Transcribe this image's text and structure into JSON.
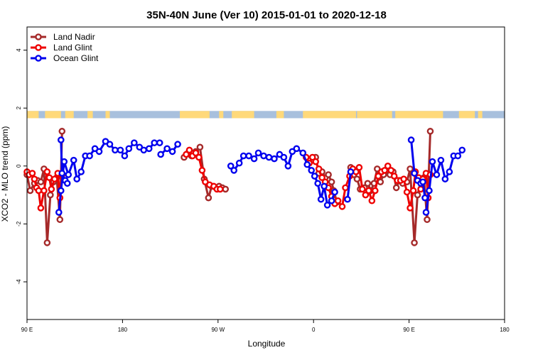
{
  "chart_data": {
    "type": "line",
    "title": "35N-40N June (Ver 10)   2015-01-01 to 2020-12-18",
    "xlabel": "Longitude",
    "ylabel": "XCO2 - MLO trend (ppm)",
    "xlim": [
      90,
      540
    ],
    "ylim": [
      -5.3,
      4.8
    ],
    "xticks": [
      {
        "value": 90,
        "label": "90 E"
      },
      {
        "value": 180,
        "label": "180"
      },
      {
        "value": 270,
        "label": "90 W"
      },
      {
        "value": 360,
        "label": "0"
      },
      {
        "value": 450,
        "label": "90 E"
      },
      {
        "value": 540,
        "label": "180"
      }
    ],
    "yticks": [
      {
        "value": -4,
        "label": "-4"
      },
      {
        "value": -2,
        "label": "-2"
      },
      {
        "value": 0,
        "label": "0"
      },
      {
        "value": 2,
        "label": "2"
      },
      {
        "value": 4,
        "label": "4"
      }
    ],
    "grid": false,
    "legend": "top-left",
    "land_strip": {
      "y_range": [
        1.65,
        1.9
      ],
      "land_color": "#ffd97a",
      "ocean_color": "#a8c0dd",
      "land_segments": [
        [
          90,
          101
        ],
        [
          107,
          122
        ],
        [
          126,
          134
        ],
        [
          147,
          152
        ],
        [
          164,
          168
        ],
        [
          234,
          262
        ],
        [
          271,
          275
        ],
        [
          283,
          304
        ],
        [
          325,
          332
        ],
        [
          350,
          400
        ],
        [
          401,
          434
        ],
        [
          437,
          482
        ],
        [
          497,
          512
        ],
        [
          515,
          519
        ]
      ]
    },
    "series": [
      {
        "name": "Land Nadir",
        "color": "#a52a2a",
        "segments": [
          [
            {
              "x": 90,
              "y": -0.3
            },
            {
              "x": 93,
              "y": -0.85
            },
            {
              "x": 97,
              "y": -0.6
            },
            {
              "x": 100,
              "y": -0.5
            },
            {
              "x": 103,
              "y": -0.55
            },
            {
              "x": 106,
              "y": -0.1
            },
            {
              "x": 109,
              "y": -2.65
            },
            {
              "x": 112,
              "y": -1.0
            },
            {
              "x": 115,
              "y": -0.55
            },
            {
              "x": 118,
              "y": -0.4
            },
            {
              "x": 121,
              "y": -1.85
            },
            {
              "x": 123,
              "y": 1.2
            }
          ],
          [
            {
              "x": 238,
              "y": 0.3
            },
            {
              "x": 242,
              "y": 0.45
            },
            {
              "x": 245,
              "y": 0.35
            },
            {
              "x": 249,
              "y": 0.5
            },
            {
              "x": 253,
              "y": 0.65
            },
            {
              "x": 257,
              "y": -0.45
            },
            {
              "x": 261,
              "y": -1.1
            },
            {
              "x": 264,
              "y": -0.7
            },
            {
              "x": 268,
              "y": -0.75
            },
            {
              "x": 271,
              "y": -0.7
            },
            {
              "x": 274,
              "y": -0.75
            },
            {
              "x": 277,
              "y": -0.8
            }
          ],
          [
            {
              "x": 362,
              "y": 0.3
            },
            {
              "x": 365,
              "y": -0.25
            },
            {
              "x": 368,
              "y": -0.2
            },
            {
              "x": 371,
              "y": -0.4
            },
            {
              "x": 374,
              "y": -0.3
            },
            {
              "x": 377,
              "y": -0.55
            },
            {
              "x": 379,
              "y": -0.85
            },
            {
              "x": 382,
              "y": -1.25
            }
          ],
          [
            {
              "x": 395,
              "y": -0.05
            },
            {
              "x": 398,
              "y": -0.3
            },
            {
              "x": 401,
              "y": -0.45
            },
            {
              "x": 404,
              "y": -0.8
            },
            {
              "x": 408,
              "y": -0.75
            },
            {
              "x": 411,
              "y": -0.6
            },
            {
              "x": 414,
              "y": -0.85
            },
            {
              "x": 417,
              "y": -0.6
            },
            {
              "x": 420,
              "y": -0.1
            },
            {
              "x": 423,
              "y": -0.55
            },
            {
              "x": 426,
              "y": -0.3
            },
            {
              "x": 429,
              "y": -0.15
            },
            {
              "x": 432,
              "y": -0.3
            },
            {
              "x": 435,
              "y": -0.2
            },
            {
              "x": 438,
              "y": -0.75
            },
            {
              "x": 441,
              "y": -0.5
            },
            {
              "x": 444,
              "y": -0.6
            },
            {
              "x": 448,
              "y": -0.55
            },
            {
              "x": 451,
              "y": -0.1
            },
            {
              "x": 455,
              "y": -2.65
            },
            {
              "x": 458,
              "y": -1.0
            },
            {
              "x": 461,
              "y": -0.55
            },
            {
              "x": 464,
              "y": -0.4
            },
            {
              "x": 467,
              "y": -1.85
            },
            {
              "x": 470,
              "y": 1.2
            }
          ]
        ]
      },
      {
        "name": "Land Glint",
        "color": "#ee0000",
        "segments": [
          [
            {
              "x": 90,
              "y": -0.2
            },
            {
              "x": 92,
              "y": -0.3
            },
            {
              "x": 95,
              "y": -0.25
            },
            {
              "x": 97,
              "y": -0.45
            },
            {
              "x": 99,
              "y": -0.75
            },
            {
              "x": 101,
              "y": -0.85
            },
            {
              "x": 103,
              "y": -1.45
            },
            {
              "x": 106,
              "y": -0.85
            },
            {
              "x": 109,
              "y": -0.2
            },
            {
              "x": 111,
              "y": -0.4
            },
            {
              "x": 113,
              "y": -0.8
            },
            {
              "x": 116,
              "y": -0.45
            },
            {
              "x": 119,
              "y": -0.25
            },
            {
              "x": 121,
              "y": -1.1
            },
            {
              "x": 123,
              "y": -0.3
            }
          ],
          [
            {
              "x": 240,
              "y": 0.4
            },
            {
              "x": 243,
              "y": 0.55
            },
            {
              "x": 246,
              "y": 0.35
            },
            {
              "x": 249,
              "y": 0.45
            },
            {
              "x": 252,
              "y": 0.3
            },
            {
              "x": 255,
              "y": -0.15
            },
            {
              "x": 258,
              "y": -0.55
            },
            {
              "x": 262,
              "y": -0.65
            },
            {
              "x": 266,
              "y": -0.7
            },
            {
              "x": 269,
              "y": -0.8
            },
            {
              "x": 272,
              "y": -0.8
            }
          ],
          [
            {
              "x": 353,
              "y": 0.3
            },
            {
              "x": 356,
              "y": 0.1
            },
            {
              "x": 359,
              "y": 0.3
            },
            {
              "x": 362,
              "y": 0.15
            },
            {
              "x": 365,
              "y": -0.1
            },
            {
              "x": 368,
              "y": -0.4
            },
            {
              "x": 371,
              "y": -0.55
            },
            {
              "x": 374,
              "y": -0.75
            },
            {
              "x": 377,
              "y": -1.05
            },
            {
              "x": 380,
              "y": -1.3
            },
            {
              "x": 383,
              "y": -1.2
            },
            {
              "x": 387,
              "y": -1.4
            },
            {
              "x": 390,
              "y": -0.75
            },
            {
              "x": 394,
              "y": -0.35
            },
            {
              "x": 397,
              "y": -0.1
            },
            {
              "x": 400,
              "y": -0.2
            },
            {
              "x": 403,
              "y": -0.05
            },
            {
              "x": 406,
              "y": -0.8
            },
            {
              "x": 409,
              "y": -1.0
            },
            {
              "x": 412,
              "y": -0.85
            },
            {
              "x": 415,
              "y": -1.2
            },
            {
              "x": 418,
              "y": -0.85
            },
            {
              "x": 421,
              "y": -0.35
            },
            {
              "x": 424,
              "y": -0.2
            },
            {
              "x": 427,
              "y": -0.15
            },
            {
              "x": 430,
              "y": 0.0
            },
            {
              "x": 433,
              "y": -0.15
            },
            {
              "x": 436,
              "y": -0.35
            },
            {
              "x": 439,
              "y": -0.5
            },
            {
              "x": 442,
              "y": -0.5
            },
            {
              "x": 445,
              "y": -0.45
            },
            {
              "x": 448,
              "y": -0.9
            },
            {
              "x": 451,
              "y": -1.45
            },
            {
              "x": 454,
              "y": -0.85
            },
            {
              "x": 456,
              "y": -0.2
            },
            {
              "x": 459,
              "y": -0.4
            },
            {
              "x": 461,
              "y": -0.8
            },
            {
              "x": 463,
              "y": -0.45
            },
            {
              "x": 466,
              "y": -0.25
            },
            {
              "x": 468,
              "y": -1.1
            },
            {
              "x": 470,
              "y": -0.3
            }
          ]
        ]
      },
      {
        "name": "Ocean Glint",
        "color": "#0000ee",
        "segments": [
          [
            {
              "x": 120,
              "y": -1.6
            },
            {
              "x": 122,
              "y": -0.85
            },
            {
              "x": 125,
              "y": 0.15
            },
            {
              "x": 129,
              "y": -0.3
            },
            {
              "x": 134,
              "y": 0.2
            },
            {
              "x": 137,
              "y": -0.45
            },
            {
              "x": 141,
              "y": -0.2
            },
            {
              "x": 145,
              "y": 0.35
            },
            {
              "x": 149,
              "y": 0.35
            },
            {
              "x": 154,
              "y": 0.6
            },
            {
              "x": 158,
              "y": 0.5
            },
            {
              "x": 164,
              "y": 0.85
            },
            {
              "x": 168,
              "y": 0.75
            },
            {
              "x": 173,
              "y": 0.55
            },
            {
              "x": 178,
              "y": 0.55
            },
            {
              "x": 182,
              "y": 0.35
            },
            {
              "x": 186,
              "y": 0.6
            },
            {
              "x": 191,
              "y": 0.8
            },
            {
              "x": 196,
              "y": 0.65
            },
            {
              "x": 200,
              "y": 0.55
            },
            {
              "x": 205,
              "y": 0.6
            },
            {
              "x": 210,
              "y": 0.8
            },
            {
              "x": 215,
              "y": 0.8
            }
          ],
          [
            {
              "x": 216,
              "y": 0.4
            },
            {
              "x": 222,
              "y": 0.6
            },
            {
              "x": 227,
              "y": 0.5
            },
            {
              "x": 232,
              "y": 0.75
            }
          ],
          [
            {
              "x": 282,
              "y": 0.0
            },
            {
              "x": 285,
              "y": -0.15
            },
            {
              "x": 290,
              "y": 0.1
            },
            {
              "x": 294,
              "y": 0.35
            },
            {
              "x": 299,
              "y": 0.35
            },
            {
              "x": 304,
              "y": 0.25
            },
            {
              "x": 308,
              "y": 0.45
            },
            {
              "x": 313,
              "y": 0.35
            },
            {
              "x": 318,
              "y": 0.3
            },
            {
              "x": 323,
              "y": 0.25
            },
            {
              "x": 328,
              "y": 0.4
            },
            {
              "x": 332,
              "y": 0.3
            },
            {
              "x": 336,
              "y": 0.0
            },
            {
              "x": 340,
              "y": 0.5
            },
            {
              "x": 344,
              "y": 0.6
            },
            {
              "x": 350,
              "y": 0.45
            },
            {
              "x": 354,
              "y": 0.05
            },
            {
              "x": 358,
              "y": -0.15
            },
            {
              "x": 361,
              "y": -0.35
            },
            {
              "x": 364,
              "y": -0.6
            },
            {
              "x": 367,
              "y": -1.15
            },
            {
              "x": 370,
              "y": -0.7
            },
            {
              "x": 373,
              "y": -1.35
            },
            {
              "x": 377,
              "y": -1.2
            },
            {
              "x": 380,
              "y": -0.9
            }
          ],
          [
            {
              "x": 392,
              "y": -1.15
            },
            {
              "x": 395,
              "y": -0.2
            }
          ],
          [
            {
              "x": 466,
              "y": -1.6
            },
            {
              "x": 469,
              "y": -0.85
            },
            {
              "x": 472,
              "y": 0.15
            },
            {
              "x": 476,
              "y": -0.3
            },
            {
              "x": 480,
              "y": 0.2
            },
            {
              "x": 484,
              "y": -0.45
            },
            {
              "x": 488,
              "y": -0.2
            },
            {
              "x": 492,
              "y": 0.35
            },
            {
              "x": 496,
              "y": 0.35
            },
            {
              "x": 500,
              "y": 0.55
            }
          ],
          [
            {
              "x": 122,
              "y": 0.9
            },
            {
              "x": 123,
              "y": -0.25
            },
            {
              "x": 126,
              "y": -0.5
            },
            {
              "x": 128,
              "y": -0.6
            }
          ],
          [
            {
              "x": 452,
              "y": 0.9
            },
            {
              "x": 455,
              "y": -0.25
            },
            {
              "x": 458,
              "y": -0.5
            },
            {
              "x": 461,
              "y": -0.6
            },
            {
              "x": 463,
              "y": -0.55
            },
            {
              "x": 465,
              "y": -1.1
            }
          ]
        ]
      }
    ]
  }
}
